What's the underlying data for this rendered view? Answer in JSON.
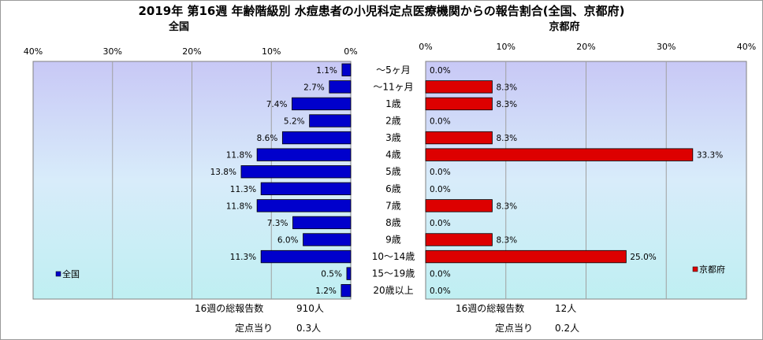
{
  "title": "2019年 第16週 年齢階級別 水痘患者の小児科定点医療機関からの報告割合(全国、京都府)",
  "chart_data": [
    {
      "type": "bar",
      "orientation": "horizontal",
      "subtitle": "全国",
      "legend": "全国",
      "axis_direction": "right-to-left",
      "xlim": [
        0,
        40
      ],
      "ticks": [
        "0%",
        "10%",
        "20%",
        "30%",
        "40%"
      ],
      "color": "#0000cc",
      "values": [
        1.1,
        2.7,
        7.4,
        5.2,
        8.6,
        11.8,
        13.8,
        11.3,
        11.8,
        7.3,
        6.0,
        11.3,
        0.5,
        1.2
      ],
      "value_labels": [
        "1.1%",
        "2.7%",
        "7.4%",
        "5.2%",
        "8.6%",
        "11.8%",
        "13.8%",
        "11.3%",
        "11.8%",
        "7.3%",
        "6.0%",
        "11.3%",
        "0.5%",
        "1.2%"
      ],
      "footer": {
        "total_label": "16週の総報告数",
        "total_value": "910人",
        "per_label": "定点当り",
        "per_value": "0.3人"
      }
    },
    {
      "type": "bar",
      "orientation": "horizontal",
      "subtitle": "京都府",
      "legend": "京都府",
      "axis_direction": "left-to-right",
      "xlim": [
        0,
        40
      ],
      "ticks": [
        "0%",
        "10%",
        "20%",
        "30%",
        "40%"
      ],
      "color": "#dd0000",
      "values": [
        0.0,
        8.3,
        8.3,
        0.0,
        8.3,
        33.3,
        0.0,
        0.0,
        8.3,
        0.0,
        8.3,
        25.0,
        0.0,
        0.0
      ],
      "value_labels": [
        "0.0%",
        "8.3%",
        "8.3%",
        "0.0%",
        "8.3%",
        "33.3%",
        "0.0%",
        "0.0%",
        "8.3%",
        "0.0%",
        "8.3%",
        "25.0%",
        "0.0%",
        "0.0%"
      ],
      "footer": {
        "total_label": "16週の総報告数",
        "total_value": "12人",
        "per_label": "定点当り",
        "per_value": "0.2人"
      }
    }
  ],
  "categories": [
    "～5ヶ月",
    "～11ヶ月",
    "1歳",
    "2歳",
    "3歳",
    "4歳",
    "5歳",
    "6歳",
    "7歳",
    "8歳",
    "9歳",
    "10～14歳",
    "15～19歳",
    "20歳以上"
  ]
}
